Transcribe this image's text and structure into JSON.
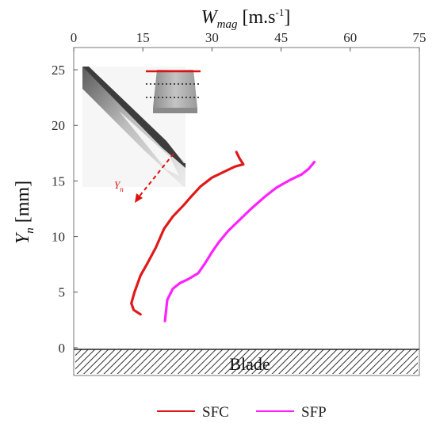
{
  "chart_data": {
    "type": "line",
    "xlabel": {
      "main": "W",
      "sub": "mag",
      "unit": " [m.s",
      "sup": "-1",
      "close": "]"
    },
    "ylabel": {
      "main": "Y",
      "sub": "n",
      "unit": " [mm]"
    },
    "xlim": [
      0,
      75
    ],
    "ylim": [
      -2.5,
      27
    ],
    "xticks": [
      0,
      15,
      30,
      45,
      60,
      75
    ],
    "yticks": [
      0,
      5,
      10,
      15,
      20,
      25
    ],
    "x_axis_position": "top",
    "grid": false,
    "legend": {
      "placement": "bottom"
    },
    "series": [
      {
        "name": "SFC",
        "color": "#e01a1a",
        "points": [
          [
            14.5,
            3.0
          ],
          [
            13.0,
            3.4
          ],
          [
            12.5,
            4.0
          ],
          [
            13.2,
            5.0
          ],
          [
            14.5,
            6.5
          ],
          [
            16.0,
            7.6
          ],
          [
            17.8,
            9.0
          ],
          [
            19.6,
            10.7
          ],
          [
            21.5,
            11.8
          ],
          [
            23.8,
            12.8
          ],
          [
            25.5,
            13.6
          ],
          [
            27.5,
            14.5
          ],
          [
            30.0,
            15.3
          ],
          [
            32.5,
            15.8
          ],
          [
            35.0,
            16.3
          ],
          [
            36.8,
            16.5
          ],
          [
            36.0,
            17.0
          ],
          [
            35.3,
            17.6
          ]
        ]
      },
      {
        "name": "SFP",
        "color": "#ff22ff",
        "points": [
          [
            19.8,
            2.4
          ],
          [
            20.0,
            3.2
          ],
          [
            20.3,
            4.3
          ],
          [
            21.5,
            5.3
          ],
          [
            23.0,
            5.8
          ],
          [
            25.0,
            6.2
          ],
          [
            27.0,
            6.7
          ],
          [
            28.5,
            7.6
          ],
          [
            30.0,
            8.6
          ],
          [
            31.5,
            9.5
          ],
          [
            33.5,
            10.5
          ],
          [
            36.0,
            11.5
          ],
          [
            38.5,
            12.5
          ],
          [
            41.5,
            13.6
          ],
          [
            44.0,
            14.4
          ],
          [
            47.0,
            15.1
          ],
          [
            49.5,
            15.6
          ],
          [
            51.0,
            16.1
          ],
          [
            52.2,
            16.7
          ]
        ]
      }
    ],
    "annotations": {
      "blade_label": "Blade",
      "inset_axis_label": "Y",
      "inset_axis_sub": "n"
    }
  }
}
